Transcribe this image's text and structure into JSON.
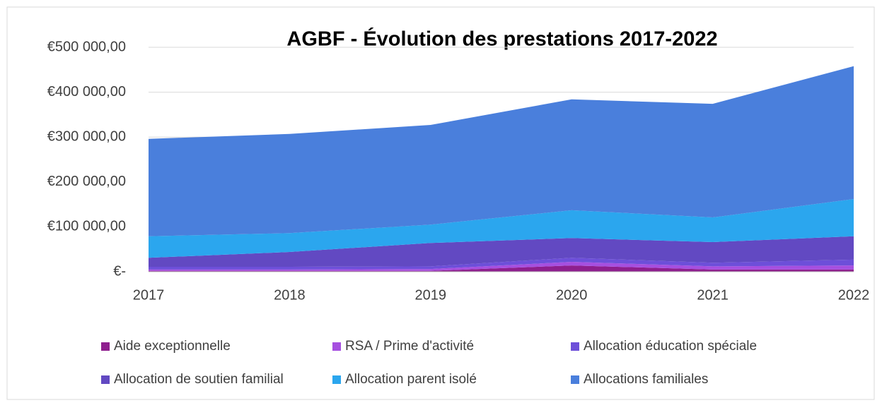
{
  "chart_data": {
    "type": "stacked_area",
    "title": "AGBF - Évolution des prestations 2017-2022",
    "categories": [
      "2017",
      "2018",
      "2019",
      "2020",
      "2021",
      "2022"
    ],
    "series": [
      {
        "name": "Aide exceptionnelle",
        "color": "#8e1f8e",
        "values": [
          2000,
          2000,
          2000,
          14000,
          5000,
          5000
        ]
      },
      {
        "name": "RSA / Prime d'activité",
        "color": "#a64fe0",
        "values": [
          3000,
          3000,
          4000,
          8000,
          7000,
          9000
        ]
      },
      {
        "name": "Allocation éducation spéciale",
        "color": "#6d4fd9",
        "values": [
          6000,
          6000,
          6000,
          9000,
          8000,
          13000
        ]
      },
      {
        "name": "Allocation de soutien familial",
        "color": "#6249c2",
        "values": [
          20000,
          33000,
          52000,
          44000,
          46000,
          52000
        ]
      },
      {
        "name": "Allocation parent isolé",
        "color": "#2ba6ee",
        "values": [
          48000,
          42000,
          41000,
          62000,
          55000,
          83000
        ]
      },
      {
        "name": "Allocations familiales",
        "color": "#4a7fdc",
        "values": [
          217000,
          221000,
          222000,
          247000,
          253000,
          296000
        ]
      }
    ],
    "ylim": [
      0,
      500000
    ],
    "yticks": [
      {
        "value": 0,
        "label": "€-"
      },
      {
        "value": 100000,
        "label": "€100 000,00"
      },
      {
        "value": 200000,
        "label": "€200 000,00"
      },
      {
        "value": 300000,
        "label": "€300 000,00"
      },
      {
        "value": 400000,
        "label": "€400 000,00"
      },
      {
        "value": 500000,
        "label": "€500 000,00"
      }
    ],
    "grid": true
  }
}
